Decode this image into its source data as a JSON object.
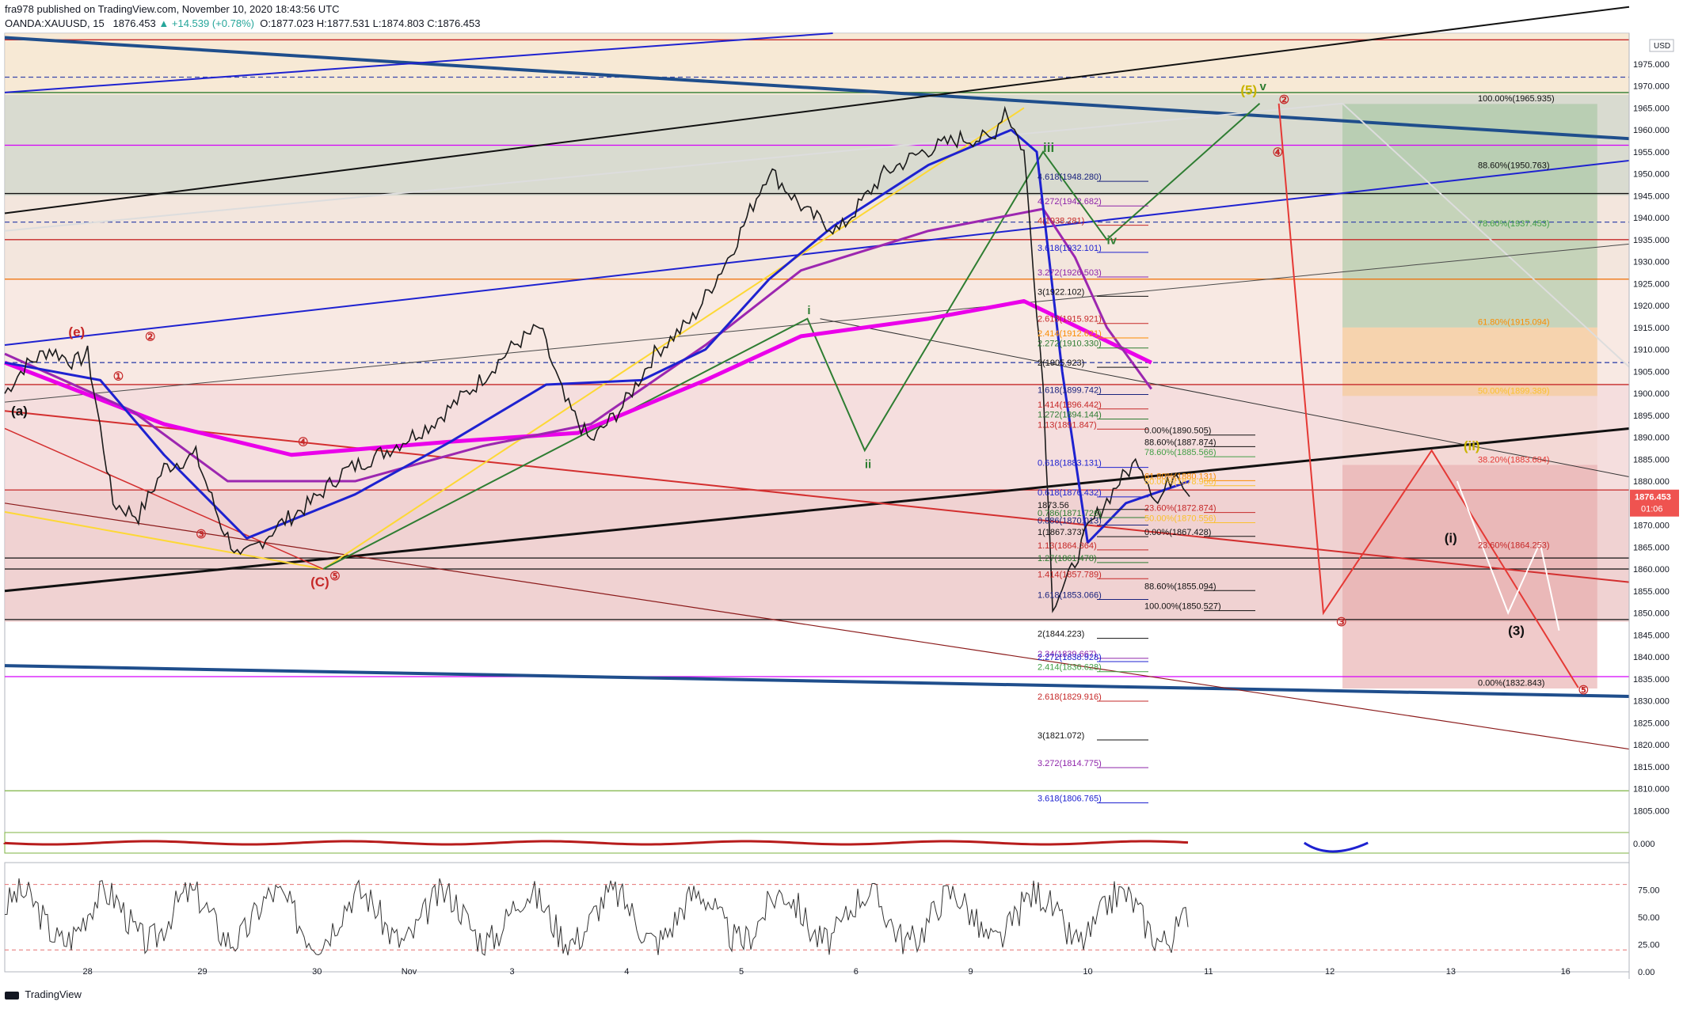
{
  "header": {
    "line1": "fra978 published on TradingView.com, November 10, 2020 18:43:56 UTC",
    "symbol": "OANDA:XAUUSD, 15",
    "last": "1876.453",
    "change": "▲ +14.539 (+0.78%)",
    "ohlc": "O:1877.023 H:1877.531 L:1874.803 C:1876.453"
  },
  "footer": {
    "brand": "TradingView"
  },
  "colors": {
    "up": "#26a69a",
    "price_badge": "#ef5350",
    "fib_green_zone": "#9ec29a",
    "fib_red_zone": "#e6a6a6",
    "ma_magenta": "#ea00ea",
    "ma_purple": "#9c27b0",
    "ma_blue": "#1e22d0",
    "trendline_navy": "#1f4e8c"
  },
  "chart_data": [
    {
      "type": "line",
      "title": "OANDA:XAUUSD, 15",
      "currency_badge": "USD",
      "ylim": [
        1800,
        1982
      ],
      "y_ticks": [
        "1975.000",
        "1970.000",
        "1965.000",
        "1960.000",
        "1955.000",
        "1950.000",
        "1945.000",
        "1940.000",
        "1935.000",
        "1930.000",
        "1925.000",
        "1920.000",
        "1915.000",
        "1910.000",
        "1905.000",
        "1900.000",
        "1895.000",
        "1890.000",
        "1885.000",
        "1880.000",
        "1875.000",
        "1870.000",
        "1865.000",
        "1860.000",
        "1855.000",
        "1850.000",
        "1845.000",
        "1840.000",
        "1835.000",
        "1830.000",
        "1825.000",
        "1820.000",
        "1815.000",
        "1810.000",
        "1805.000"
      ],
      "x_ticks": [
        "28",
        "29",
        "30",
        "Nov",
        "3",
        "4",
        "5",
        "6",
        "9",
        "10",
        "11",
        "12",
        "13",
        "16"
      ],
      "last_price_label": "1876.453",
      "countdown_label": "01:06",
      "price_path": [
        [
          0,
          1900
        ],
        [
          3,
          1906
        ],
        [
          7,
          1910
        ],
        [
          11,
          1907
        ],
        [
          13,
          1909
        ],
        [
          17,
          1875
        ],
        [
          21,
          1872
        ],
        [
          25,
          1883
        ],
        [
          30,
          1886
        ],
        [
          34,
          1870
        ],
        [
          37,
          1862
        ],
        [
          40,
          1866
        ],
        [
          43,
          1870
        ],
        [
          48,
          1875
        ],
        [
          53,
          1882
        ],
        [
          60,
          1887
        ],
        [
          67,
          1893
        ],
        [
          74,
          1902
        ],
        [
          80,
          1911
        ],
        [
          84,
          1915
        ],
        [
          88,
          1898
        ],
        [
          92,
          1889
        ],
        [
          97,
          1897
        ],
        [
          102,
          1909
        ],
        [
          108,
          1917
        ],
        [
          114,
          1932
        ],
        [
          120,
          1951
        ],
        [
          126,
          1941
        ],
        [
          131,
          1937
        ],
        [
          138,
          1950
        ],
        [
          144,
          1955
        ],
        [
          150,
          1958
        ],
        [
          155,
          1958
        ],
        [
          157,
          1965
        ],
        [
          160,
          1955
        ],
        [
          163,
          1902
        ],
        [
          164.5,
          1852
        ],
        [
          167,
          1858
        ],
        [
          170,
          1869
        ],
        [
          175,
          1880
        ],
        [
          178,
          1885
        ],
        [
          181,
          1875
        ],
        [
          184,
          1883
        ],
        [
          186,
          1876.5
        ]
      ],
      "moving_averages": [
        {
          "name": "MA slow (magenta)",
          "color": "#ea00ea",
          "points": [
            [
              0,
              1907
            ],
            [
              25,
              1893
            ],
            [
              45,
              1886
            ],
            [
              70,
              1889
            ],
            [
              90,
              1891
            ],
            [
              110,
              1903
            ],
            [
              125,
              1913
            ],
            [
              145,
              1917
            ],
            [
              160,
              1921
            ],
            [
              170,
              1914
            ],
            [
              180,
              1907
            ]
          ]
        },
        {
          "name": "MA medium (purple)",
          "color": "#9c27b0",
          "points": [
            [
              0,
              1909
            ],
            [
              20,
              1896
            ],
            [
              35,
              1880
            ],
            [
              55,
              1880
            ],
            [
              75,
              1888
            ],
            [
              92,
              1893
            ],
            [
              110,
              1911
            ],
            [
              125,
              1928
            ],
            [
              145,
              1937
            ],
            [
              163,
              1942
            ],
            [
              168,
              1931
            ],
            [
              173,
              1915
            ],
            [
              180,
              1901
            ]
          ]
        },
        {
          "name": "MA fast (blue)",
          "color": "#1e22d0",
          "points": [
            [
              0,
              1907
            ],
            [
              15,
              1903
            ],
            [
              25,
              1886
            ],
            [
              38,
              1867
            ],
            [
              55,
              1877
            ],
            [
              70,
              1889
            ],
            [
              85,
              1902
            ],
            [
              100,
              1903
            ],
            [
              110,
              1910
            ],
            [
              120,
              1926
            ],
            [
              130,
              1938
            ],
            [
              145,
              1952
            ],
            [
              158,
              1960
            ],
            [
              162,
              1955
            ],
            [
              166,
              1905
            ],
            [
              170,
              1866
            ],
            [
              176,
              1875
            ],
            [
              186,
              1880
            ]
          ]
        }
      ],
      "horizontal_levels": [
        {
          "price": 1980.5,
          "color": "#c62828",
          "style": "solid"
        },
        {
          "price": 1972,
          "color": "#3949ab",
          "style": "dashed"
        },
        {
          "price": 1968.5,
          "color": "#2e7d32",
          "style": "solid"
        },
        {
          "price": 1956.5,
          "color": "#d500f9",
          "style": "solid"
        },
        {
          "price": 1945.5,
          "color": "#111111",
          "style": "solid"
        },
        {
          "price": 1939,
          "color": "#3949ab",
          "style": "dashed"
        },
        {
          "price": 1935,
          "color": "#c62828",
          "style": "solid"
        },
        {
          "price": 1926,
          "color": "#ef6c00",
          "style": "solid"
        },
        {
          "price": 1907,
          "color": "#3949ab",
          "style": "dashed"
        },
        {
          "price": 1902,
          "color": "#c62828",
          "style": "solid"
        },
        {
          "price": 1878,
          "color": "#c62828",
          "style": "solid"
        },
        {
          "price": 1862.5,
          "color": "#111111",
          "style": "solid"
        },
        {
          "price": 1860,
          "color": "#111111",
          "style": "solid"
        },
        {
          "price": 1848.5,
          "color": "#111111",
          "style": "solid"
        },
        {
          "price": 1835.5,
          "color": "#d500f9",
          "style": "solid"
        },
        {
          "price": 1809.5,
          "color": "#7cb342",
          "style": "solid"
        }
      ],
      "fib_retracement_labels": [
        {
          "text": "100.00%(1965.935)",
          "price": 1965.935,
          "color": "#111111"
        },
        {
          "text": "88.60%(1950.763)",
          "price": 1950.763,
          "color": "#111111"
        },
        {
          "text": "78.60%(1937.453)",
          "price": 1937.453,
          "color": "#43a047"
        },
        {
          "text": "61.80%(1915.094)",
          "price": 1915.094,
          "color": "#fb8c00"
        },
        {
          "text": "50.00%(1899.389)",
          "price": 1899.389,
          "color": "#fbc02d"
        },
        {
          "text": "38.20%(1883.684)",
          "price": 1883.684,
          "color": "#e53935"
        },
        {
          "text": "23.60%(1864.253)",
          "price": 1864.253,
          "color": "#c62828"
        },
        {
          "text": "0.00%(1832.843)",
          "price": 1832.843,
          "color": "#111111"
        }
      ],
      "fib_extension_labels": [
        {
          "text": "4.618(1948.280)",
          "price": 1948.28,
          "color": "#1a237e"
        },
        {
          "text": "4.272(1942.682)",
          "price": 1942.682,
          "color": "#8e24aa"
        },
        {
          "text": "4(1938.281)",
          "price": 1938.281,
          "color": "#c62828"
        },
        {
          "text": "3.618(1932.101)",
          "price": 1932.101,
          "color": "#1e22d0"
        },
        {
          "text": "3.272(1926.503)",
          "price": 1926.503,
          "color": "#8e24aa"
        },
        {
          "text": "3(1922.102)",
          "price": 1922.102,
          "color": "#111111"
        },
        {
          "text": "2.618(1915.921)",
          "price": 1915.921,
          "color": "#c62828"
        },
        {
          "text": "2.414(1912.621)",
          "price": 1912.621,
          "color": "#fb8c00"
        },
        {
          "text": "2.272(1910.330)",
          "price": 1910.33,
          "color": "#2e7d32"
        },
        {
          "text": "2(1905.923)",
          "price": 1905.923,
          "color": "#111111"
        },
        {
          "text": "1.618(1899.742)",
          "price": 1899.742,
          "color": "#1a237e"
        },
        {
          "text": "1.414(1896.442)",
          "price": 1896.442,
          "color": "#c62828"
        },
        {
          "text": "1.272(1894.144)",
          "price": 1894.144,
          "color": "#2e7d32"
        },
        {
          "text": "1.13(1891.847)",
          "price": 1891.847,
          "color": "#c62828"
        },
        {
          "text": "0.00%(1890.505)",
          "price": 1890.505,
          "color": "#111111"
        },
        {
          "text": "88.60%(1887.874)",
          "price": 1887.874,
          "color": "#111111"
        },
        {
          "text": "78.60%(1885.566)",
          "price": 1885.566,
          "color": "#43a047"
        },
        {
          "text": "0.618(1883.131)",
          "price": 1883.131,
          "color": "#1e22d0"
        },
        {
          "text": "61.80%(1880.131)",
          "price": 1880.131,
          "color": "#fb8c00"
        },
        {
          "text": "50.00%(1878.966)",
          "price": 1878.966,
          "color": "#fbc02d"
        },
        {
          "text": "0.618(1876.432)",
          "price": 1876.432,
          "color": "#1e22d0"
        },
        {
          "text": "1873.56",
          "price": 1873.56,
          "color": "#111111"
        },
        {
          "text": "23.60%(1872.874)",
          "price": 1872.874,
          "color": "#c62828"
        },
        {
          "text": "0.786(1871.726)",
          "price": 1871.726,
          "color": "#2e7d32"
        },
        {
          "text": "0.886(1870.013)",
          "price": 1870.013,
          "color": "#1a237e"
        },
        {
          "text": "50.00%(1870.556)",
          "price": 1870.556,
          "color": "#fbc02d"
        },
        {
          "text": "1(1867.373)",
          "price": 1867.373,
          "color": "#111111"
        },
        {
          "text": "0.00%(1867.428)",
          "price": 1867.428,
          "color": "#111111"
        },
        {
          "text": "1.13(1864.364)",
          "price": 1864.364,
          "color": "#c62828"
        },
        {
          "text": "1.27(1861.478)",
          "price": 1861.478,
          "color": "#2e7d32"
        },
        {
          "text": "1.414(1857.789)",
          "price": 1857.789,
          "color": "#c62828"
        },
        {
          "text": "88.60%(1855.094)",
          "price": 1855.094,
          "color": "#111111"
        },
        {
          "text": "1.618(1853.066)",
          "price": 1853.066,
          "color": "#1a237e"
        },
        {
          "text": "100.00%(1850.527)",
          "price": 1850.527,
          "color": "#111111"
        },
        {
          "text": "2(1844.223)",
          "price": 1844.223,
          "color": "#111111"
        },
        {
          "text": "2.34(1839.667)",
          "price": 1839.667,
          "color": "#8e24aa"
        },
        {
          "text": "2.272(1838.928)",
          "price": 1838.928,
          "color": "#1e22d0"
        },
        {
          "text": "2.414(1836.628)",
          "price": 1836.628,
          "color": "#43a047"
        },
        {
          "text": "2.618(1829.916)",
          "price": 1829.916,
          "color": "#c62828"
        },
        {
          "text": "3(1821.072)",
          "price": 1821.072,
          "color": "#111111"
        },
        {
          "text": "3.272(1814.775)",
          "price": 1814.775,
          "color": "#8e24aa"
        },
        {
          "text": "3.618(1806.765)",
          "price": 1806.765,
          "color": "#1e22d0"
        }
      ],
      "wave_labels": [
        {
          "text": "(e)",
          "x": 10,
          "price": 1913,
          "color": "#c62828"
        },
        {
          "text": "②",
          "x": 22,
          "price": 1912,
          "color": "#c62828"
        },
        {
          "text": "①",
          "x": 17,
          "price": 1903,
          "color": "#c62828"
        },
        {
          "text": "④",
          "x": 46,
          "price": 1888,
          "color": "#c62828"
        },
        {
          "text": "③",
          "x": 30,
          "price": 1867,
          "color": "#c62828"
        },
        {
          "text": "(C)",
          "x": 48,
          "price": 1856,
          "color": "#c62828"
        },
        {
          "text": "⑤",
          "x": 51,
          "price": 1857.5,
          "color": "#c62828"
        },
        {
          "text": "(a)",
          "x": 1,
          "price": 1895,
          "color": "#111111"
        },
        {
          "text": "i",
          "x": 126,
          "price": 1918,
          "color": "#2e7d32"
        },
        {
          "text": "ii",
          "x": 135,
          "price": 1883,
          "color": "#2e7d32"
        },
        {
          "text": "iii",
          "x": 163,
          "price": 1955,
          "color": "#2e7d32"
        },
        {
          "text": "iv",
          "x": 173,
          "price": 1934,
          "color": "#2e7d32"
        },
        {
          "text": "v",
          "x": 197,
          "price": 1969,
          "color": "#2e7d32"
        },
        {
          "text": "(5)",
          "x": 194,
          "price": 1968,
          "color": "#c9b400"
        },
        {
          "text": "②",
          "x": 200,
          "price": 1966,
          "color": "#c62828"
        },
        {
          "text": "④",
          "x": 199,
          "price": 1954,
          "color": "#c62828"
        },
        {
          "text": "③",
          "x": 209,
          "price": 1847,
          "color": "#c62828"
        },
        {
          "text": "(i)",
          "x": 226,
          "price": 1866,
          "color": "#111111"
        },
        {
          "text": "(ii)",
          "x": 229,
          "price": 1887,
          "color": "#c9b400"
        },
        {
          "text": "(3)",
          "x": 236,
          "price": 1845,
          "color": "#111111"
        },
        {
          "text": "⑤",
          "x": 247,
          "price": 1831.5,
          "color": "#c62828"
        }
      ]
    },
    {
      "type": "line",
      "name": "oscillator",
      "y_ticks": [
        "0.000"
      ],
      "series_note": ""
    },
    {
      "type": "line",
      "name": "RSI-style oscillator",
      "ylim": [
        0,
        100
      ],
      "y_ticks": [
        "75.00",
        "50.00",
        "25.00",
        "0.00"
      ],
      "bands": [
        80,
        20
      ]
    }
  ]
}
